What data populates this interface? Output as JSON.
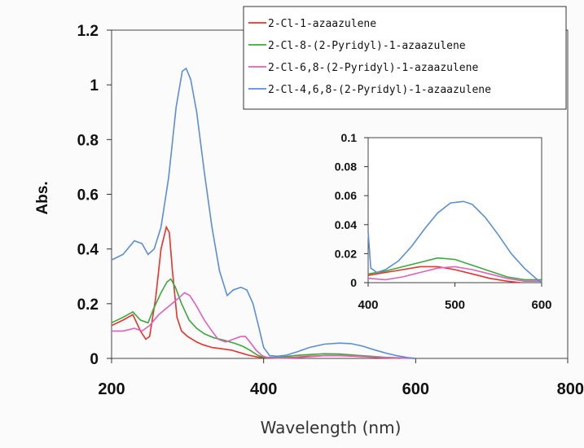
{
  "chart_data": [
    {
      "type": "line",
      "xlabel": "Wavelength (nm)",
      "ylabel": "Abs.",
      "xlim": [
        200,
        800
      ],
      "ylim": [
        0,
        1.2
      ],
      "x_ticks": [
        "200",
        "400",
        "600",
        "800"
      ],
      "y_ticks": [
        "0",
        "0.2",
        "0.4",
        "0.6",
        "0.8",
        "1",
        "1.2"
      ],
      "grid": false,
      "legend": "top-right",
      "series": [
        {
          "name": "2-Cl-1-azaazulene",
          "color": "#e8322b",
          "points": [
            [
              200,
              0.12
            ],
            [
              215,
              0.14
            ],
            [
              228,
              0.16
            ],
            [
              238,
              0.1
            ],
            [
              245,
              0.07
            ],
            [
              250,
              0.08
            ],
            [
              258,
              0.22
            ],
            [
              265,
              0.4
            ],
            [
              272,
              0.48
            ],
            [
              276,
              0.46
            ],
            [
              280,
              0.32
            ],
            [
              286,
              0.15
            ],
            [
              292,
              0.1
            ],
            [
              300,
              0.08
            ],
            [
              312,
              0.06
            ],
            [
              320,
              0.05
            ],
            [
              332,
              0.04
            ],
            [
              345,
              0.035
            ],
            [
              358,
              0.03
            ],
            [
              370,
              0.02
            ],
            [
              380,
              0.012
            ],
            [
              392,
              0.005
            ],
            [
              400,
              0.003
            ],
            [
              420,
              0.002
            ],
            [
              440,
              0.004
            ],
            [
              460,
              0.008
            ],
            [
              480,
              0.01
            ],
            [
              500,
              0.01
            ],
            [
              520,
              0.008
            ],
            [
              540,
              0.005
            ],
            [
              560,
              0.002
            ],
            [
              580,
              0.0
            ]
          ]
        },
        {
          "name": "2-Cl-8-(2-Pyridyl)-1-azaazulene",
          "color": "#3aaa3a",
          "points": [
            [
              200,
              0.13
            ],
            [
              215,
              0.15
            ],
            [
              228,
              0.17
            ],
            [
              238,
              0.14
            ],
            [
              248,
              0.13
            ],
            [
              255,
              0.18
            ],
            [
              265,
              0.24
            ],
            [
              273,
              0.28
            ],
            [
              278,
              0.29
            ],
            [
              284,
              0.26
            ],
            [
              292,
              0.2
            ],
            [
              302,
              0.14
            ],
            [
              312,
              0.11
            ],
            [
              322,
              0.09
            ],
            [
              335,
              0.075
            ],
            [
              350,
              0.065
            ],
            [
              362,
              0.055
            ],
            [
              372,
              0.045
            ],
            [
              382,
              0.03
            ],
            [
              392,
              0.012
            ],
            [
              400,
              0.004
            ],
            [
              420,
              0.004
            ],
            [
              440,
              0.01
            ],
            [
              460,
              0.014
            ],
            [
              480,
              0.017
            ],
            [
              500,
              0.016
            ],
            [
              520,
              0.012
            ],
            [
              540,
              0.008
            ],
            [
              560,
              0.004
            ],
            [
              580,
              0.002
            ],
            [
              600,
              0.0
            ]
          ]
        },
        {
          "name": "2-Cl-6,8-(2-Pyridyl)-1-azaazulene",
          "color": "#e060c0",
          "points": [
            [
              200,
              0.1
            ],
            [
              215,
              0.1
            ],
            [
              230,
              0.11
            ],
            [
              240,
              0.1
            ],
            [
              250,
              0.12
            ],
            [
              262,
              0.16
            ],
            [
              275,
              0.19
            ],
            [
              288,
              0.22
            ],
            [
              296,
              0.24
            ],
            [
              303,
              0.23
            ],
            [
              312,
              0.19
            ],
            [
              322,
              0.14
            ],
            [
              332,
              0.1
            ],
            [
              340,
              0.07
            ],
            [
              350,
              0.06
            ],
            [
              360,
              0.07
            ],
            [
              370,
              0.08
            ],
            [
              376,
              0.08
            ],
            [
              382,
              0.06
            ],
            [
              390,
              0.03
            ],
            [
              398,
              0.01
            ],
            [
              405,
              0.003
            ],
            [
              420,
              0.001
            ],
            [
              440,
              0.002
            ],
            [
              460,
              0.006
            ],
            [
              480,
              0.01
            ],
            [
              500,
              0.011
            ],
            [
              520,
              0.009
            ],
            [
              540,
              0.006
            ],
            [
              560,
              0.003
            ],
            [
              580,
              0.001
            ],
            [
              600,
              0.0
            ]
          ]
        },
        {
          "name": "2-Cl-4,6,8-(2-Pyridyl)-1-azaazulene",
          "color": "#5b8ed6",
          "points": [
            [
              200,
              0.36
            ],
            [
              215,
              0.38
            ],
            [
              230,
              0.43
            ],
            [
              240,
              0.42
            ],
            [
              248,
              0.38
            ],
            [
              256,
              0.4
            ],
            [
              265,
              0.48
            ],
            [
              275,
              0.66
            ],
            [
              285,
              0.92
            ],
            [
              293,
              1.05
            ],
            [
              298,
              1.06
            ],
            [
              304,
              1.02
            ],
            [
              312,
              0.9
            ],
            [
              322,
              0.68
            ],
            [
              332,
              0.48
            ],
            [
              342,
              0.32
            ],
            [
              352,
              0.23
            ],
            [
              360,
              0.25
            ],
            [
              370,
              0.26
            ],
            [
              378,
              0.25
            ],
            [
              386,
              0.2
            ],
            [
              394,
              0.11
            ],
            [
              400,
              0.04
            ],
            [
              408,
              0.01
            ],
            [
              418,
              0.008
            ],
            [
              430,
              0.012
            ],
            [
              445,
              0.025
            ],
            [
              460,
              0.04
            ],
            [
              480,
              0.052
            ],
            [
              500,
              0.056
            ],
            [
              515,
              0.054
            ],
            [
              530,
              0.045
            ],
            [
              545,
              0.032
            ],
            [
              560,
              0.02
            ],
            [
              575,
              0.01
            ],
            [
              590,
              0.003
            ],
            [
              600,
              0.0
            ]
          ]
        }
      ]
    },
    {
      "type": "line",
      "inset": true,
      "xlim": [
        400,
        600
      ],
      "ylim": [
        0,
        0.1
      ],
      "x_ticks": [
        "400",
        "500",
        "600"
      ],
      "y_ticks": [
        "0",
        "0.02",
        "0.04",
        "0.06",
        "0.08",
        "0.1"
      ],
      "series": [
        {
          "color": "#e8322b",
          "points": [
            [
              400,
              0.005
            ],
            [
              420,
              0.007
            ],
            [
              440,
              0.009
            ],
            [
              460,
              0.011
            ],
            [
              480,
              0.011
            ],
            [
              500,
              0.009
            ],
            [
              520,
              0.006
            ],
            [
              540,
              0.003
            ],
            [
              560,
              0.001
            ],
            [
              575,
              0.0
            ]
          ]
        },
        {
          "color": "#3aaa3a",
          "points": [
            [
              400,
              0.006
            ],
            [
              420,
              0.008
            ],
            [
              440,
              0.011
            ],
            [
              460,
              0.014
            ],
            [
              480,
              0.017
            ],
            [
              500,
              0.016
            ],
            [
              520,
              0.012
            ],
            [
              540,
              0.008
            ],
            [
              560,
              0.004
            ],
            [
              580,
              0.002
            ],
            [
              600,
              0.002
            ]
          ]
        },
        {
          "color": "#e060c0",
          "points": [
            [
              400,
              0.003
            ],
            [
              420,
              0.002
            ],
            [
              440,
              0.004
            ],
            [
              460,
              0.007
            ],
            [
              480,
              0.01
            ],
            [
              500,
              0.011
            ],
            [
              520,
              0.009
            ],
            [
              540,
              0.006
            ],
            [
              560,
              0.003
            ],
            [
              580,
              0.001
            ],
            [
              600,
              0.001
            ]
          ]
        },
        {
          "color": "#5b8ed6",
          "points": [
            [
              400,
              0.035
            ],
            [
              403,
              0.01
            ],
            [
              410,
              0.007
            ],
            [
              420,
              0.009
            ],
            [
              435,
              0.015
            ],
            [
              450,
              0.025
            ],
            [
              465,
              0.037
            ],
            [
              480,
              0.048
            ],
            [
              495,
              0.055
            ],
            [
              510,
              0.056
            ],
            [
              520,
              0.054
            ],
            [
              535,
              0.045
            ],
            [
              550,
              0.033
            ],
            [
              565,
              0.02
            ],
            [
              580,
              0.01
            ],
            [
              595,
              0.002
            ],
            [
              600,
              0.0
            ]
          ]
        }
      ]
    }
  ]
}
